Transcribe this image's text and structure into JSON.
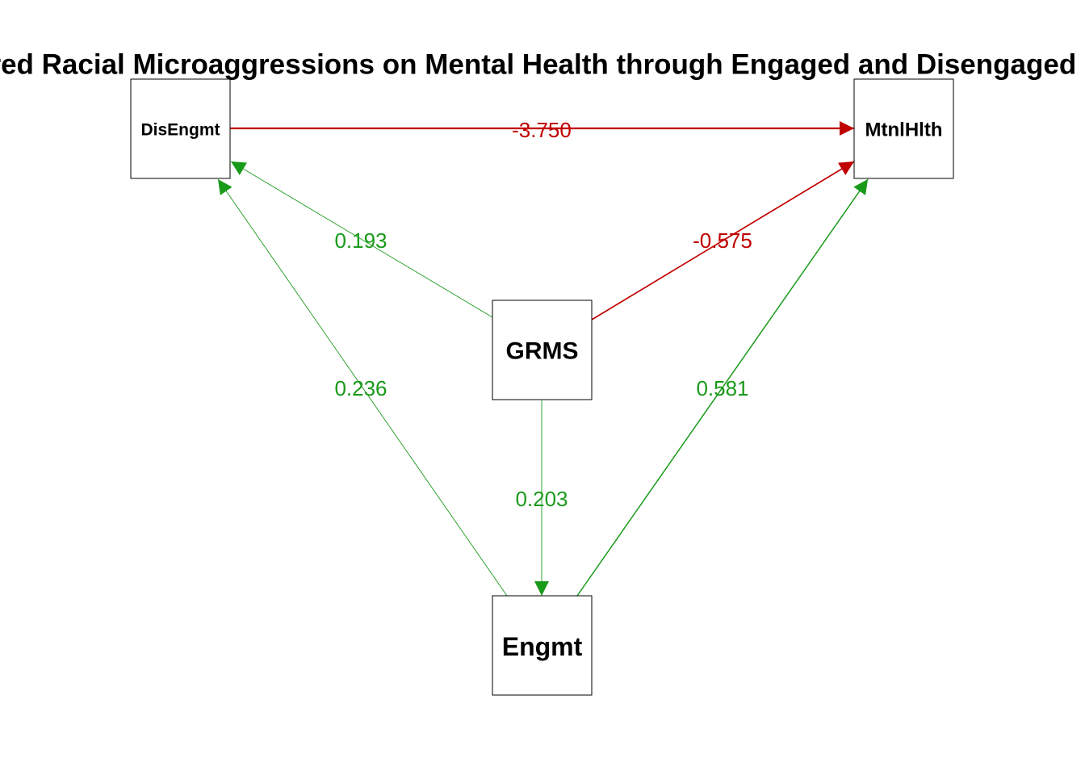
{
  "title": "Gendered Racial Microaggressions on Mental Health through Engaged and Disengaged Coping",
  "colors": {
    "positive": "#1a9a1a",
    "negative": "#c00000",
    "node_border": "#000000",
    "text": "#000000"
  },
  "nodes": [
    {
      "id": "DisEngmt",
      "label": "DisEngmt"
    },
    {
      "id": "MtnlHlth",
      "label": "MtnlHlth"
    },
    {
      "id": "GRMS",
      "label": "GRMS"
    },
    {
      "id": "Engmt",
      "label": "Engmt"
    }
  ],
  "edges": [
    {
      "from": "DisEngmt",
      "to": "MtnlHlth",
      "label": "-3.750",
      "sign": "negative"
    },
    {
      "from": "GRMS",
      "to": "DisEngmt",
      "label": "0.193",
      "sign": "positive"
    },
    {
      "from": "GRMS",
      "to": "MtnlHlth",
      "label": "-0.575",
      "sign": "negative"
    },
    {
      "from": "Engmt",
      "to": "DisEngmt",
      "label": "0.236",
      "sign": "positive"
    },
    {
      "from": "Engmt",
      "to": "MtnlHlth",
      "label": "0.581",
      "sign": "positive"
    },
    {
      "from": "GRMS",
      "to": "Engmt",
      "label": "0.203",
      "sign": "positive"
    }
  ]
}
